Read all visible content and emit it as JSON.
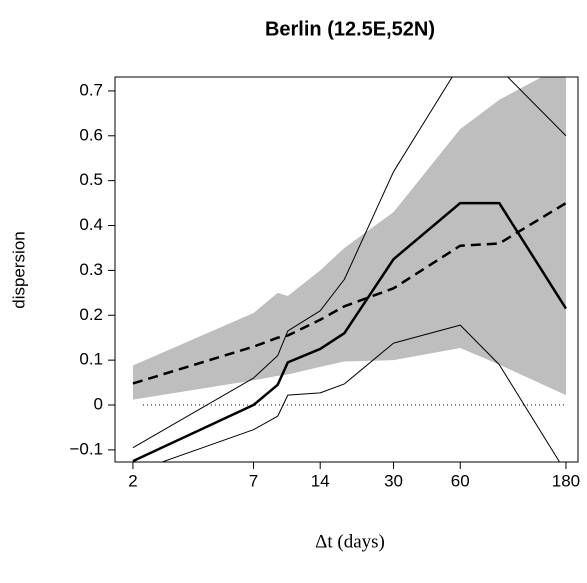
{
  "chart_data": {
    "type": "line",
    "title": "Berlin (12.5E,52N)",
    "xlabel": "Δt (days)",
    "ylabel": "dispersion",
    "x": [
      2,
      7,
      9,
      10,
      14,
      18,
      30,
      60,
      90,
      180
    ],
    "xscale": "log",
    "xlim": [
      1.66,
      204
    ],
    "xticks": [
      2,
      7,
      14,
      30,
      60,
      180
    ],
    "ylim": [
      -0.127,
      0.731
    ],
    "yticks": [
      {
        "value": -0.1,
        "label": "−0.1"
      },
      0,
      0.1,
      0.2,
      0.3,
      0.4,
      0.5,
      0.6,
      0.7
    ],
    "hline": 0,
    "band": {
      "color": "#bebebe",
      "lower": [
        0.012,
        0.055,
        0.065,
        0.068,
        0.085,
        0.097,
        0.1,
        0.127,
        0.09,
        0.022
      ],
      "upper": [
        0.088,
        0.205,
        0.25,
        0.243,
        0.3,
        0.35,
        0.43,
        0.615,
        0.68,
        0.76
      ]
    },
    "series": [
      {
        "color": "#000000",
        "linewidth": 1,
        "linestyle": "solid",
        "values": [
          -0.095,
          0.06,
          0.11,
          0.165,
          0.21,
          0.28,
          0.52,
          0.76,
          0.75,
          0.6
        ]
      },
      {
        "color": "#000000",
        "linewidth": 1,
        "linestyle": "solid",
        "values": [
          -0.15,
          -0.055,
          -0.025,
          0.022,
          0.027,
          0.047,
          0.138,
          0.178,
          0.09,
          -0.15
        ]
      },
      {
        "color": "#000000",
        "linewidth": 2.5,
        "linestyle": "dashed",
        "values": [
          0.048,
          0.13,
          0.15,
          0.155,
          0.19,
          0.22,
          0.26,
          0.355,
          0.36,
          0.45
        ]
      },
      {
        "color": "#000000",
        "linewidth": 2.5,
        "linestyle": "solid",
        "values": [
          -0.125,
          0,
          0.045,
          0.095,
          0.125,
          0.16,
          0.325,
          0.45,
          0.45,
          0.215
        ]
      }
    ]
  }
}
